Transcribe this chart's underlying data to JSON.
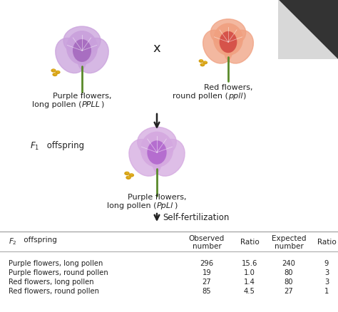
{
  "bg_color": "#c8c8c8",
  "upper_bg": "#ffffff",
  "table_bg": "#ffffff",
  "cross_symbol": "x",
  "left_label1": "Purple flowers,",
  "left_label2": "long pollen (",
  "left_italic": "PPLL",
  "left_label3": ")",
  "right_label1": "Red flowers,",
  "right_label2": "round pollen (",
  "right_italic": "ppll",
  "right_label3": ")",
  "f1_flower_label1": "Purple flowers,",
  "f1_flower_label2": "long pollen (",
  "f1_italic": "PpLl",
  "f1_flower_label3": ")",
  "self_fert": "Self-fertilization",
  "f1_text": "F",
  "f1_sub": "1",
  "f1_suffix": " offspring",
  "f2_text": "F",
  "f2_sub": "2",
  "f2_suffix": " offspring",
  "col_obs": "Observed\nnumber",
  "col_ratio1": "Ratio",
  "col_exp": "Expected\nnumber",
  "col_ratio2": "Ratio",
  "table_rows": [
    [
      "Purple flowers, long pollen",
      "296",
      "15.6",
      "240",
      "9"
    ],
    [
      "Purple flowers, round pollen",
      "19",
      "1.0",
      "80",
      "3"
    ],
    [
      "Red flowers, long pollen",
      "27",
      "1.4",
      "80",
      "3"
    ],
    [
      "Red flowers, round pollen",
      "85",
      "4.5",
      "27",
      "1"
    ]
  ],
  "left_flower_color_outer": "#c9a0dc",
  "left_flower_color_inner": "#9b59b6",
  "right_flower_color_outer": "#f0a080",
  "right_flower_color_inner": "#cc3333",
  "f1_flower_color_outer": "#d4a8e0",
  "f1_flower_color_inner": "#a855c8",
  "pollen_color": "#d4a017",
  "stem_color": "#5a8a2a",
  "text_color": "#222222",
  "divider_color": "#aaaaaa",
  "arrow_color": "#222222",
  "fold_dark": "#555555",
  "fold_light": "#cccccc"
}
